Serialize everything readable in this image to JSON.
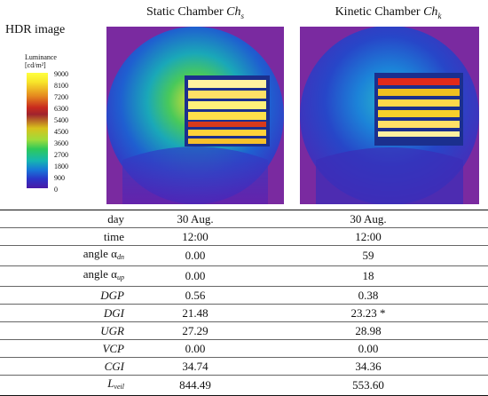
{
  "header": {
    "hdr_label": "HDR image",
    "static_title": "Static Chamber ",
    "static_sym": "Ch",
    "static_sub": "s",
    "kinetic_title": "Kinetic Chamber ",
    "kinetic_sym": "Ch",
    "kinetic_sub": "k"
  },
  "legend": {
    "title": "Luminance",
    "unit": "[cd/m²]",
    "ticks": [
      "9000",
      "8100",
      "7200",
      "6300",
      "5400",
      "4500",
      "3600",
      "2700",
      "1800",
      "900",
      "0"
    ]
  },
  "table": {
    "rows": [
      {
        "label": "day",
        "sub": "",
        "italic": false,
        "static": "30 Aug.",
        "kinetic": "30 Aug."
      },
      {
        "label": "time",
        "sub": "",
        "italic": false,
        "static": "12:00",
        "kinetic": "12:00"
      },
      {
        "label": "angle α",
        "sub": "dn",
        "italic": false,
        "static": "0.00",
        "kinetic": "59"
      },
      {
        "label": "angle α",
        "sub": "up",
        "italic": false,
        "static": "0.00",
        "kinetic": "18"
      },
      {
        "label": "DGP",
        "sub": "",
        "italic": true,
        "static": "0.56",
        "kinetic": "0.38"
      },
      {
        "label": "DGI",
        "sub": "",
        "italic": true,
        "static": "21.48",
        "kinetic": "23.23 *"
      },
      {
        "label": "UGR",
        "sub": "",
        "italic": true,
        "static": "27.29",
        "kinetic": "28.98"
      },
      {
        "label": "VCP",
        "sub": "",
        "italic": true,
        "static": "0.00",
        "kinetic": "0.00"
      },
      {
        "label": "CGI",
        "sub": "",
        "italic": true,
        "static": "34.74",
        "kinetic": "34.36"
      },
      {
        "label": "L",
        "sub": "veil",
        "italic": true,
        "static": "844.49",
        "kinetic": "553.60"
      }
    ]
  }
}
